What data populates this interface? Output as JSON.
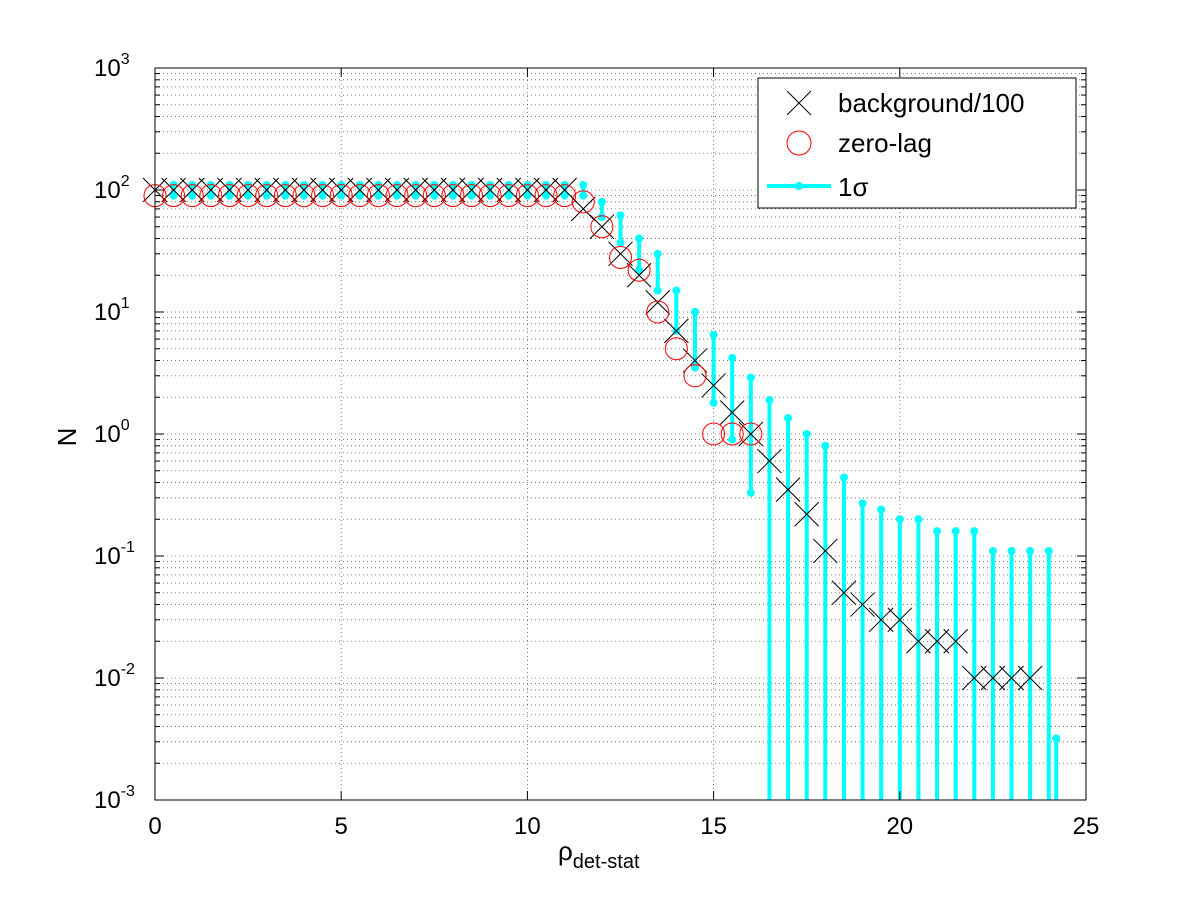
{
  "chart_data": {
    "type": "scatter",
    "title": "",
    "xlabel": "ρ",
    "xlabel_subscript": "det-stat",
    "ylabel": "N",
    "xlim": [
      0,
      25
    ],
    "ylim": [
      0.001,
      1000
    ],
    "yscale": "log",
    "xticks": [
      0,
      5,
      10,
      15,
      20,
      25
    ],
    "yticks": [
      {
        "base": "10",
        "exp": "-3",
        "value": 0.001
      },
      {
        "base": "10",
        "exp": "-2",
        "value": 0.01
      },
      {
        "base": "10",
        "exp": "-1",
        "value": 0.1
      },
      {
        "base": "10",
        "exp": "0",
        "value": 1
      },
      {
        "base": "10",
        "exp": "1",
        "value": 10
      },
      {
        "base": "10",
        "exp": "2",
        "value": 100
      },
      {
        "base": "10",
        "exp": "3",
        "value": 1000
      }
    ],
    "grid": true,
    "legend_position": "top-right",
    "legend": [
      "background/100",
      "zero-lag",
      "1σ"
    ],
    "colors": {
      "background": "#000000",
      "zero_lag": "#ff0000",
      "sigma": "#00ffff"
    },
    "background": {
      "x": [
        0,
        0.5,
        1,
        1.5,
        2,
        2.5,
        3,
        3.5,
        4,
        4.5,
        5,
        5.5,
        6,
        6.5,
        7,
        7.5,
        8,
        8.5,
        9,
        9.5,
        10,
        10.5,
        11,
        11.5,
        12,
        12.5,
        13,
        13.5,
        14,
        14.5,
        15,
        15.5,
        16,
        16.5,
        17,
        17.5,
        18,
        18.5,
        19,
        19.5,
        20,
        20.5,
        21,
        21.5,
        22,
        22.5,
        23,
        23.5
      ],
      "y": [
        100,
        100,
        100,
        100,
        100,
        100,
        100,
        100,
        100,
        100,
        100,
        100,
        100,
        100,
        100,
        100,
        100,
        100,
        100,
        100,
        100,
        100,
        100,
        70,
        50,
        30,
        20,
        12,
        7,
        4,
        2.5,
        1.5,
        1,
        0.6,
        0.35,
        0.22,
        0.11,
        0.05,
        0.04,
        0.03,
        0.03,
        0.02,
        0.02,
        0.02,
        0.01,
        0.01,
        0.01,
        0.01
      ]
    },
    "zero_lag": {
      "x": [
        0,
        0.5,
        1,
        1.5,
        2,
        2.5,
        3,
        3.5,
        4,
        4.5,
        5,
        5.5,
        6,
        6.5,
        7,
        7.5,
        8,
        8.5,
        9,
        9.5,
        10,
        10.5,
        11,
        11.5,
        12,
        12.5,
        13,
        13.5,
        14,
        14.5,
        15,
        15.5,
        16
      ],
      "y": [
        90,
        90,
        90,
        90,
        90,
        90,
        90,
        90,
        90,
        90,
        90,
        90,
        90,
        90,
        90,
        90,
        90,
        90,
        90,
        90,
        90,
        90,
        90,
        80,
        50,
        28,
        22,
        10,
        5,
        3,
        1,
        1,
        1
      ]
    },
    "sigma": {
      "x": [
        0.5,
        1,
        1.5,
        2,
        2.5,
        3,
        3.5,
        4,
        4.5,
        5,
        5.5,
        6,
        6.5,
        7,
        7.5,
        8,
        8.5,
        9,
        9.5,
        10,
        10.5,
        11,
        11.5,
        12,
        12.5,
        13,
        13.5,
        14,
        14.5,
        15,
        15.5,
        16,
        16.5,
        17,
        17.5,
        18,
        18.5,
        19,
        19.5,
        20,
        20.5,
        21,
        21.5,
        22,
        22.5,
        23,
        23.5,
        24
      ],
      "lower": [
        90,
        90,
        90,
        90,
        90,
        90,
        90,
        90,
        90,
        90,
        90,
        90,
        90,
        90,
        90,
        90,
        90,
        90,
        90,
        90,
        90,
        90,
        90,
        60,
        37,
        22,
        15,
        7,
        3.5,
        1.8,
        0.9,
        0.33,
        0.001,
        0.001,
        0.001,
        0.001,
        0.001,
        0.001,
        0.001,
        0.001,
        0.001,
        0.001,
        0.001,
        0.001,
        0.001,
        0.001,
        0.001,
        0.001
      ],
      "upper": [
        110,
        110,
        110,
        110,
        110,
        110,
        110,
        110,
        110,
        110,
        110,
        110,
        110,
        110,
        110,
        110,
        110,
        110,
        110,
        110,
        110,
        110,
        110,
        80,
        62,
        40,
        30,
        15,
        10,
        6.5,
        4.2,
        2.9,
        1.9,
        1.35,
        1.0,
        0.8,
        0.44,
        0.27,
        0.24,
        0.2,
        0.2,
        0.16,
        0.16,
        0.16,
        0.11,
        0.11,
        0.11,
        0.11
      ]
    },
    "sigma_tail": {
      "x": 24.2,
      "y": 0.0032
    }
  }
}
